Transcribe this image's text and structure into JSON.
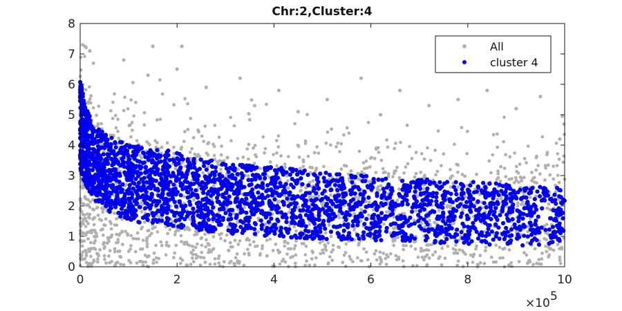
{
  "chart_data": {
    "type": "scatter",
    "title": "Chr:2,Cluster:4",
    "xlabel": "",
    "ylabel": "",
    "xlim": [
      0,
      1000000
    ],
    "ylim": [
      0,
      8
    ],
    "x_ticks": [
      0,
      2,
      4,
      6,
      8,
      10
    ],
    "x_exponent_label": "×10",
    "x_exponent_power": "5",
    "y_ticks": [
      0,
      1,
      2,
      3,
      4,
      5,
      6,
      7,
      8
    ],
    "grid": false,
    "legend_position": "top-right",
    "series": [
      {
        "name": "All",
        "color": "#b0b0b0",
        "band_samples_x": [
          0,
          20000,
          50000,
          100000,
          200000,
          300000,
          400000,
          500000,
          600000,
          700000,
          800000,
          900000,
          1000000
        ],
        "band_lower": [
          0,
          0,
          0,
          0,
          0,
          0,
          0,
          0,
          0,
          0,
          0,
          0,
          0
        ],
        "band_upper": [
          6.5,
          5.2,
          4.6,
          4.2,
          3.8,
          3.5,
          3.4,
          3.2,
          3.1,
          3.0,
          2.9,
          2.9,
          2.9
        ],
        "outliers": [
          [
            20000,
            7.1
          ],
          [
            90000,
            6.8
          ],
          [
            140000,
            6.3
          ],
          [
            150000,
            7.25
          ],
          [
            210000,
            7.25
          ],
          [
            200000,
            6.5
          ],
          [
            260000,
            5.9
          ],
          [
            330000,
            6.2
          ],
          [
            360000,
            5.3
          ],
          [
            410000,
            5.8
          ],
          [
            450000,
            5.1
          ],
          [
            510000,
            5.5
          ],
          [
            580000,
            6.2
          ],
          [
            620000,
            5.0
          ],
          [
            660000,
            5.8
          ],
          [
            720000,
            5.3
          ],
          [
            780000,
            5.5
          ],
          [
            840000,
            5.8
          ],
          [
            900000,
            5.2
          ],
          [
            950000,
            5.6
          ],
          [
            990000,
            4.2
          ]
        ]
      },
      {
        "name": "cluster 4",
        "color": "#0000ee",
        "band_samples_x": [
          0,
          10000,
          30000,
          60000,
          100000,
          200000,
          300000,
          400000,
          500000,
          600000,
          700000,
          800000,
          900000,
          1000000
        ],
        "band_lower": [
          3.2,
          2.7,
          2.2,
          1.8,
          1.5,
          1.3,
          1.1,
          1.0,
          0.9,
          0.85,
          0.8,
          0.75,
          0.7,
          0.7
        ],
        "band_upper": [
          6.2,
          5.3,
          4.6,
          4.3,
          4.0,
          3.8,
          3.4,
          3.3,
          3.1,
          3.0,
          2.9,
          2.8,
          2.7,
          2.6
        ]
      }
    ]
  }
}
